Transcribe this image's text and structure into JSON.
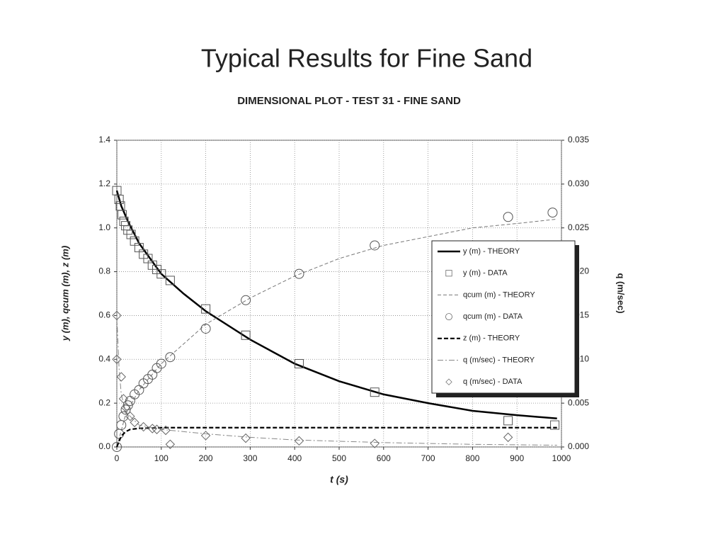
{
  "slide_title": "Typical Results for Fine Sand",
  "chart_data": {
    "type": "line",
    "title": "DIMENSIONAL PLOT - TEST 31 - FINE SAND",
    "x_label": "t (s)",
    "y_label": "y (m),  qcum (m), z (m)",
    "y2_label": "q (m/sec)",
    "xlim": [
      0,
      1000
    ],
    "xticks": [
      0,
      100,
      200,
      300,
      400,
      500,
      600,
      700,
      800,
      900,
      1000
    ],
    "ylim": [
      0,
      1.4
    ],
    "yticks": [
      {
        "value": 0,
        "label": "0.0"
      },
      {
        "value": 0.2,
        "label": "0.2"
      },
      {
        "value": 0.4,
        "label": "0.4"
      },
      {
        "value": 0.6,
        "label": "0.6"
      },
      {
        "value": 0.8,
        "label": "0.8"
      },
      {
        "value": 1,
        "label": "1.0"
      },
      {
        "value": 1.2,
        "label": "1.2"
      },
      {
        "value": 1.4,
        "label": "1.4"
      }
    ],
    "y2lim": [
      0,
      0.035
    ],
    "y2ticks": [
      {
        "value": 0,
        "label": "0.000"
      },
      {
        "value": 0.005,
        "label": "0.005"
      },
      {
        "value": 0.01,
        "label": "0.010"
      },
      {
        "value": 0.015,
        "label": "0.015"
      },
      {
        "value": 0.02,
        "label": "0.020"
      },
      {
        "value": 0.025,
        "label": "0.025"
      },
      {
        "value": 0.03,
        "label": "0.030"
      },
      {
        "value": 0.035,
        "label": "0.035"
      }
    ],
    "grid": true,
    "legend_position": "right",
    "series": [
      {
        "name": "y (m) - THEORY",
        "kind": "line",
        "line_style": "solid",
        "color": "#000000",
        "x": [
          0,
          10,
          25,
          50,
          100,
          150,
          200,
          300,
          400,
          500,
          600,
          700,
          800,
          900,
          990
        ],
        "values": [
          1.17,
          1.1,
          1.03,
          0.93,
          0.79,
          0.7,
          0.62,
          0.49,
          0.38,
          0.3,
          0.24,
          0.2,
          0.165,
          0.145,
          0.13
        ]
      },
      {
        "name": "y (m) - DATA",
        "kind": "scatter",
        "marker": "square",
        "color": "#555555",
        "x": [
          0,
          5,
          8,
          12,
          16,
          20,
          25,
          32,
          40,
          50,
          60,
          70,
          80,
          90,
          100,
          120,
          200,
          290,
          410,
          580,
          880,
          985
        ],
        "values": [
          1.17,
          1.13,
          1.1,
          1.06,
          1.03,
          1.01,
          0.99,
          0.97,
          0.94,
          0.91,
          0.88,
          0.86,
          0.83,
          0.81,
          0.79,
          0.76,
          0.63,
          0.51,
          0.38,
          0.25,
          0.12,
          0.1
        ]
      },
      {
        "name": "qcum (m) - THEORY",
        "kind": "line",
        "line_style": "dashed",
        "color": "#777777",
        "x": [
          0,
          20,
          50,
          100,
          200,
          300,
          400,
          500,
          600,
          700,
          800,
          900,
          990
        ],
        "values": [
          0,
          0.15,
          0.26,
          0.38,
          0.56,
          0.68,
          0.78,
          0.86,
          0.92,
          0.96,
          1.0,
          1.02,
          1.04
        ]
      },
      {
        "name": "qcum (m) - DATA",
        "kind": "scatter",
        "marker": "circle",
        "color": "#555555",
        "x": [
          0,
          5,
          10,
          15,
          20,
          25,
          30,
          40,
          50,
          60,
          70,
          80,
          90,
          100,
          120,
          200,
          290,
          410,
          580,
          880,
          980
        ],
        "values": [
          0,
          0.06,
          0.1,
          0.14,
          0.17,
          0.19,
          0.21,
          0.24,
          0.26,
          0.29,
          0.31,
          0.33,
          0.36,
          0.38,
          0.41,
          0.54,
          0.67,
          0.79,
          0.92,
          1.05,
          1.07
        ]
      },
      {
        "name": "z (m) - THEORY",
        "kind": "line",
        "line_style": "bold-dashed",
        "color": "#000000",
        "x": [
          0,
          10,
          20,
          30,
          50,
          100,
          200,
          400,
          600,
          800,
          990
        ],
        "values": [
          0,
          0.05,
          0.07,
          0.08,
          0.085,
          0.088,
          0.088,
          0.088,
          0.088,
          0.088,
          0.088
        ]
      },
      {
        "name": "q (m/sec) - THEORY",
        "kind": "line",
        "line_style": "dash-dot",
        "color": "#888888",
        "axis": "y2",
        "x": [
          0,
          5,
          10,
          20,
          50,
          100,
          200,
          300,
          400,
          600,
          800,
          990
        ],
        "values": [
          0.015,
          0.009,
          0.006,
          0.004,
          0.0025,
          0.002,
          0.0015,
          0.0011,
          0.0008,
          0.0005,
          0.0003,
          0.0002
        ]
      },
      {
        "name": "q (m/sec) - DATA",
        "kind": "scatter",
        "marker": "diamond",
        "color": "#666666",
        "axis": "y2",
        "x": [
          0,
          0,
          10,
          15,
          20,
          30,
          40,
          60,
          80,
          90,
          110,
          120,
          200,
          290,
          410,
          580,
          880
        ],
        "values": [
          0.015,
          0.01,
          0.008,
          0.0055,
          0.0045,
          0.0035,
          0.0028,
          0.0023,
          0.0021,
          0.002,
          0.0019,
          0.0003,
          0.0013,
          0.001,
          0.0007,
          0.0004,
          0.0011
        ]
      }
    ]
  }
}
